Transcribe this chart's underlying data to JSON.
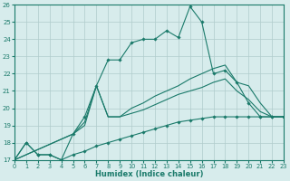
{
  "xlabel": "Humidex (Indice chaleur)",
  "bg_color": "#d7ecec",
  "grid_color": "#b0cccc",
  "line_color": "#1a7a6a",
  "xlim": [
    0,
    23
  ],
  "ylim": [
    17,
    26
  ],
  "xticks": [
    0,
    1,
    2,
    3,
    4,
    5,
    6,
    7,
    8,
    9,
    10,
    11,
    12,
    13,
    14,
    15,
    16,
    17,
    18,
    19,
    20,
    21,
    22,
    23
  ],
  "yticks": [
    17,
    18,
    19,
    20,
    21,
    22,
    23,
    24,
    25,
    26
  ],
  "series": [
    {
      "x": [
        0,
        1,
        2,
        3,
        4,
        5,
        6,
        7,
        8,
        9,
        10,
        11,
        12,
        13,
        14,
        15,
        16,
        17,
        18,
        19,
        20,
        21,
        22,
        23
      ],
      "y": [
        17,
        18,
        17.3,
        17.3,
        17.0,
        18.5,
        19.5,
        21.3,
        22.8,
        22.8,
        23.8,
        24.0,
        24.0,
        24.5,
        24.1,
        25.9,
        25.0,
        22.0,
        22.2,
        21.5,
        20.3,
        19.5,
        19.5,
        19.5
      ],
      "marker": true
    },
    {
      "x": [
        0,
        5,
        6,
        7,
        8,
        9,
        10,
        11,
        12,
        13,
        14,
        15,
        16,
        17,
        18,
        19,
        20,
        21,
        22,
        23
      ],
      "y": [
        17,
        18.5,
        19.2,
        21.3,
        19.5,
        19.5,
        20.0,
        20.3,
        20.7,
        21.0,
        21.3,
        21.7,
        22.0,
        22.3,
        22.5,
        21.5,
        21.3,
        20.3,
        19.5,
        19.5
      ],
      "marker": false
    },
    {
      "x": [
        0,
        5,
        6,
        7,
        8,
        9,
        10,
        11,
        12,
        13,
        14,
        15,
        16,
        17,
        18,
        19,
        20,
        21,
        22,
        23
      ],
      "y": [
        17,
        18.5,
        19.0,
        21.3,
        19.5,
        19.5,
        19.7,
        19.9,
        20.2,
        20.5,
        20.8,
        21.0,
        21.2,
        21.5,
        21.7,
        21.0,
        20.5,
        19.8,
        19.5,
        19.5
      ],
      "marker": false
    },
    {
      "x": [
        0,
        1,
        2,
        3,
        4,
        5,
        6,
        7,
        8,
        9,
        10,
        11,
        12,
        13,
        14,
        15,
        16,
        17,
        18,
        19,
        20,
        21,
        22,
        23
      ],
      "y": [
        17,
        18,
        17.3,
        17.3,
        17.0,
        17.3,
        17.5,
        17.8,
        18.0,
        18.2,
        18.4,
        18.6,
        18.8,
        19.0,
        19.2,
        19.3,
        19.4,
        19.5,
        19.5,
        19.5,
        19.5,
        19.5,
        19.5,
        19.5
      ],
      "marker": true
    }
  ]
}
